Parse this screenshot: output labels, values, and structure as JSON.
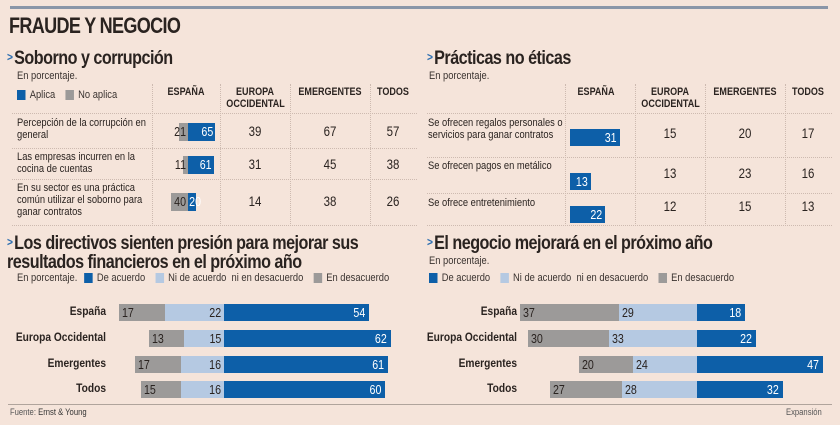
{
  "title": "FRAUDE Y NEGOCIO",
  "colors": {
    "blue": "#0d5fa8",
    "grey": "#9c9a99",
    "lightblue": "#b5c9e2",
    "background": "#f5e4da"
  },
  "unit_label": "En porcentaje.",
  "columns": [
    "ESPAÑA",
    "EUROPA\nOCCIDENTAL",
    "EMERGENTES",
    "TODOS"
  ],
  "footer": {
    "source_prefix": "Fuente:",
    "source": "Ernst & Young",
    "publisher": "Expansión"
  },
  "chart_data": [
    {
      "type": "table",
      "title": "Soborno y corrupción",
      "subtitle": "En porcentaje.",
      "legend": [
        {
          "name": "Aplica",
          "color": "#0d5fa8"
        },
        {
          "name": "No aplica",
          "color": "#9c9a99"
        }
      ],
      "columns": [
        "ESPAÑA",
        "EUROPA OCCIDENTAL",
        "EMERGENTES",
        "TODOS"
      ],
      "rows": [
        {
          "label": "Percepción de la corrupción en general",
          "espana_no_aplica": 21,
          "espana_aplica": 65,
          "europa_occidental": 39,
          "emergentes": 67,
          "todos": 57
        },
        {
          "label": "Las empresas incurren en la cocina de cuentas",
          "espana_no_aplica": 11,
          "espana_aplica": 61,
          "europa_occidental": 31,
          "emergentes": 45,
          "todos": 38
        },
        {
          "label": "En su sector es una práctica común utilizar el soborno para ganar contratos",
          "espana_no_aplica": 40,
          "espana_aplica": 20,
          "europa_occidental": 14,
          "emergentes": 38,
          "todos": 26
        }
      ]
    },
    {
      "type": "table",
      "title": "Prácticas no éticas",
      "subtitle": "En porcentaje.",
      "columns": [
        "ESPAÑA",
        "EUROPA OCCIDENTAL",
        "EMERGENTES",
        "TODOS"
      ],
      "rows": [
        {
          "label": "Se ofrecen regalos personales o servicios para ganar contratos",
          "espana": 31,
          "europa_occidental": 15,
          "emergentes": 20,
          "todos": 17
        },
        {
          "label": "Se ofrecen pagos en metálico",
          "espana": 13,
          "europa_occidental": 13,
          "emergentes": 23,
          "todos": 16
        },
        {
          "label": "Se ofrece entretenimiento",
          "espana": 22,
          "europa_occidental": 12,
          "emergentes": 15,
          "todos": 13
        }
      ]
    },
    {
      "type": "bar",
      "orientation": "horizontal-diverging",
      "title": "Los directivos sienten presión para mejorar sus resultados financieros en el próximo año",
      "subtitle": "En porcentaje.",
      "legend_placement": "top",
      "categories": [
        "España",
        "Europa Occidental",
        "Emergentes",
        "Todos"
      ],
      "series": [
        {
          "name": "De acuerdo",
          "color": "#0d5fa8",
          "values": [
            54,
            62,
            61,
            60
          ]
        },
        {
          "name": "Ni de acuerdo  ni en desacuerdo",
          "color": "#b5c9e2",
          "values": [
            22,
            15,
            16,
            16
          ]
        },
        {
          "name": "En desacuerdo",
          "color": "#9c9a99",
          "values": [
            17,
            13,
            17,
            15
          ]
        }
      ]
    },
    {
      "type": "bar",
      "orientation": "horizontal-diverging",
      "title": "El negocio mejorará en el próximo año",
      "subtitle": "En porcentaje.",
      "legend_placement": "top",
      "categories": [
        "España",
        "Europa Occidental",
        "Emergentes",
        "Todos"
      ],
      "series": [
        {
          "name": "De acuerdo",
          "color": "#0d5fa8",
          "values": [
            18,
            22,
            47,
            32
          ]
        },
        {
          "name": "Ni de acuerdo  ni en desacuerdo",
          "color": "#b5c9e2",
          "values": [
            29,
            33,
            24,
            28
          ]
        },
        {
          "name": "En desacuerdo",
          "color": "#9c9a99",
          "values": [
            37,
            30,
            20,
            27
          ]
        }
      ]
    }
  ]
}
